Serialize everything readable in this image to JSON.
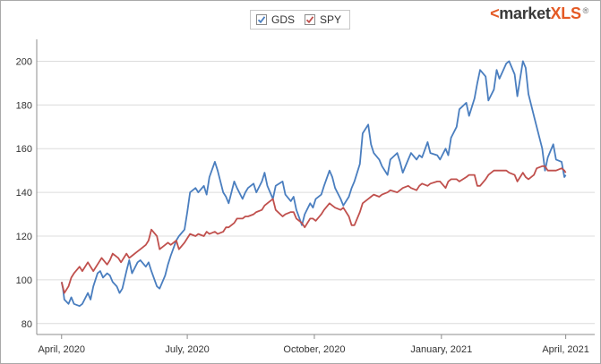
{
  "legend": {
    "items": [
      {
        "label": "GDS",
        "color": "#4a7ebf",
        "checked": true
      },
      {
        "label": "SPY",
        "color": "#c0504d",
        "checked": true
      }
    ]
  },
  "logo": {
    "prefix": "<",
    "brand": "market",
    "suffix": "XLS",
    "reg": "®"
  },
  "chart_data": {
    "type": "line",
    "title": "",
    "xlabel": "",
    "ylabel": "",
    "ylim": [
      75,
      210
    ],
    "y_ticks": [
      80,
      100,
      120,
      140,
      160,
      180,
      200
    ],
    "x_ticks": [
      {
        "date": "2020-04-01",
        "label": "April, 2020"
      },
      {
        "date": "2020-07-01",
        "label": "July, 2020"
      },
      {
        "date": "2020-10-01",
        "label": "October, 2020"
      },
      {
        "date": "2021-01-01",
        "label": "January, 2021"
      },
      {
        "date": "2021-04-01",
        "label": "April, 2021"
      }
    ],
    "xlim": [
      "2020-03-14",
      "2021-04-22"
    ],
    "grid": "horizontal",
    "legend_position": "top",
    "series": [
      {
        "name": "GDS",
        "color": "#4a7ebf",
        "points": [
          [
            "2020-04-01",
            99
          ],
          [
            "2020-04-02",
            96
          ],
          [
            "2020-04-03",
            91
          ],
          [
            "2020-04-06",
            89
          ],
          [
            "2020-04-08",
            92
          ],
          [
            "2020-04-10",
            89
          ],
          [
            "2020-04-14",
            88
          ],
          [
            "2020-04-16",
            89
          ],
          [
            "2020-04-20",
            94
          ],
          [
            "2020-04-22",
            91
          ],
          [
            "2020-04-24",
            97
          ],
          [
            "2020-04-27",
            103
          ],
          [
            "2020-04-29",
            104
          ],
          [
            "2020-05-01",
            101
          ],
          [
            "2020-05-04",
            103
          ],
          [
            "2020-05-06",
            102
          ],
          [
            "2020-05-08",
            99
          ],
          [
            "2020-05-11",
            97
          ],
          [
            "2020-05-13",
            94
          ],
          [
            "2020-05-15",
            96
          ],
          [
            "2020-05-18",
            104
          ],
          [
            "2020-05-20",
            109
          ],
          [
            "2020-05-22",
            103
          ],
          [
            "2020-05-26",
            108
          ],
          [
            "2020-05-28",
            109
          ],
          [
            "2020-06-01",
            106
          ],
          [
            "2020-06-03",
            108
          ],
          [
            "2020-06-05",
            104
          ],
          [
            "2020-06-09",
            97
          ],
          [
            "2020-06-11",
            96
          ],
          [
            "2020-06-15",
            102
          ],
          [
            "2020-06-17",
            107
          ],
          [
            "2020-06-19",
            111
          ],
          [
            "2020-06-23",
            118
          ],
          [
            "2020-06-25",
            120
          ],
          [
            "2020-06-29",
            123
          ],
          [
            "2020-07-01",
            131
          ],
          [
            "2020-07-03",
            140
          ],
          [
            "2020-07-07",
            142
          ],
          [
            "2020-07-09",
            140
          ],
          [
            "2020-07-13",
            143
          ],
          [
            "2020-07-15",
            139
          ],
          [
            "2020-07-17",
            147
          ],
          [
            "2020-07-21",
            154
          ],
          [
            "2020-07-23",
            150
          ],
          [
            "2020-07-27",
            140
          ],
          [
            "2020-07-29",
            138
          ],
          [
            "2020-07-31",
            135
          ],
          [
            "2020-08-04",
            145
          ],
          [
            "2020-08-06",
            142
          ],
          [
            "2020-08-10",
            137
          ],
          [
            "2020-08-12",
            140
          ],
          [
            "2020-08-14",
            142
          ],
          [
            "2020-08-18",
            144
          ],
          [
            "2020-08-20",
            140
          ],
          [
            "2020-08-24",
            145
          ],
          [
            "2020-08-26",
            149
          ],
          [
            "2020-08-28",
            143
          ],
          [
            "2020-09-01",
            137
          ],
          [
            "2020-09-03",
            143
          ],
          [
            "2020-09-08",
            145
          ],
          [
            "2020-09-10",
            139
          ],
          [
            "2020-09-14",
            136
          ],
          [
            "2020-09-16",
            138
          ],
          [
            "2020-09-18",
            132
          ],
          [
            "2020-09-22",
            125
          ],
          [
            "2020-09-24",
            130
          ],
          [
            "2020-09-28",
            135
          ],
          [
            "2020-09-30",
            133
          ],
          [
            "2020-10-02",
            137
          ],
          [
            "2020-10-06",
            139
          ],
          [
            "2020-10-08",
            143
          ],
          [
            "2020-10-12",
            150
          ],
          [
            "2020-10-14",
            147
          ],
          [
            "2020-10-16",
            142
          ],
          [
            "2020-10-20",
            137
          ],
          [
            "2020-10-22",
            134
          ],
          [
            "2020-10-26",
            138
          ],
          [
            "2020-10-28",
            142
          ],
          [
            "2020-10-30",
            145
          ],
          [
            "2020-11-03",
            153
          ],
          [
            "2020-11-05",
            167
          ],
          [
            "2020-11-09",
            171
          ],
          [
            "2020-11-11",
            162
          ],
          [
            "2020-11-13",
            158
          ],
          [
            "2020-11-17",
            155
          ],
          [
            "2020-11-19",
            152
          ],
          [
            "2020-11-23",
            148
          ],
          [
            "2020-11-25",
            155
          ],
          [
            "2020-11-30",
            158
          ],
          [
            "2020-12-02",
            154
          ],
          [
            "2020-12-04",
            149
          ],
          [
            "2020-12-08",
            155
          ],
          [
            "2020-12-10",
            158
          ],
          [
            "2020-12-14",
            155
          ],
          [
            "2020-12-16",
            157
          ],
          [
            "2020-12-18",
            156
          ],
          [
            "2020-12-22",
            163
          ],
          [
            "2020-12-24",
            158
          ],
          [
            "2020-12-29",
            157
          ],
          [
            "2020-12-31",
            155
          ],
          [
            "2021-01-04",
            160
          ],
          [
            "2021-01-06",
            157
          ],
          [
            "2021-01-08",
            165
          ],
          [
            "2021-01-12",
            170
          ],
          [
            "2021-01-14",
            178
          ],
          [
            "2021-01-19",
            181
          ],
          [
            "2021-01-21",
            175
          ],
          [
            "2021-01-25",
            183
          ],
          [
            "2021-01-27",
            190
          ],
          [
            "2021-01-29",
            196
          ],
          [
            "2021-02-02",
            193
          ],
          [
            "2021-02-04",
            182
          ],
          [
            "2021-02-08",
            187
          ],
          [
            "2021-02-10",
            196
          ],
          [
            "2021-02-12",
            192
          ],
          [
            "2021-02-17",
            199
          ],
          [
            "2021-02-19",
            200
          ],
          [
            "2021-02-23",
            194
          ],
          [
            "2021-02-25",
            184
          ],
          [
            "2021-03-01",
            200
          ],
          [
            "2021-03-03",
            197
          ],
          [
            "2021-03-05",
            185
          ],
          [
            "2021-03-09",
            175
          ],
          [
            "2021-03-11",
            170
          ],
          [
            "2021-03-15",
            160
          ],
          [
            "2021-03-17",
            150
          ],
          [
            "2021-03-19",
            156
          ],
          [
            "2021-03-23",
            162
          ],
          [
            "2021-03-25",
            155
          ],
          [
            "2021-03-29",
            154
          ],
          [
            "2021-03-31",
            147
          ],
          [
            "2021-04-01",
            148
          ]
        ]
      },
      {
        "name": "SPY",
        "color": "#c0504d",
        "points": [
          [
            "2020-04-01",
            99
          ],
          [
            "2020-04-03",
            94
          ],
          [
            "2020-04-06",
            97
          ],
          [
            "2020-04-08",
            101
          ],
          [
            "2020-04-10",
            103
          ],
          [
            "2020-04-14",
            106
          ],
          [
            "2020-04-16",
            104
          ],
          [
            "2020-04-20",
            108
          ],
          [
            "2020-04-22",
            106
          ],
          [
            "2020-04-24",
            104
          ],
          [
            "2020-04-28",
            108
          ],
          [
            "2020-04-30",
            110
          ],
          [
            "2020-05-04",
            107
          ],
          [
            "2020-05-06",
            109
          ],
          [
            "2020-05-08",
            112
          ],
          [
            "2020-05-12",
            110
          ],
          [
            "2020-05-14",
            108
          ],
          [
            "2020-05-18",
            112
          ],
          [
            "2020-05-20",
            110
          ],
          [
            "2020-05-22",
            111
          ],
          [
            "2020-05-26",
            113
          ],
          [
            "2020-05-28",
            114
          ],
          [
            "2020-06-01",
            116
          ],
          [
            "2020-06-03",
            118
          ],
          [
            "2020-06-05",
            123
          ],
          [
            "2020-06-09",
            120
          ],
          [
            "2020-06-11",
            114
          ],
          [
            "2020-06-15",
            116
          ],
          [
            "2020-06-17",
            117
          ],
          [
            "2020-06-19",
            116
          ],
          [
            "2020-06-23",
            118
          ],
          [
            "2020-06-25",
            114
          ],
          [
            "2020-06-29",
            117
          ],
          [
            "2020-07-01",
            119
          ],
          [
            "2020-07-03",
            121
          ],
          [
            "2020-07-07",
            120
          ],
          [
            "2020-07-09",
            121
          ],
          [
            "2020-07-13",
            120
          ],
          [
            "2020-07-15",
            122
          ],
          [
            "2020-07-17",
            121
          ],
          [
            "2020-07-21",
            122
          ],
          [
            "2020-07-23",
            121
          ],
          [
            "2020-07-27",
            122
          ],
          [
            "2020-07-29",
            124
          ],
          [
            "2020-07-31",
            124
          ],
          [
            "2020-08-04",
            126
          ],
          [
            "2020-08-06",
            128
          ],
          [
            "2020-08-10",
            128
          ],
          [
            "2020-08-12",
            129
          ],
          [
            "2020-08-14",
            129
          ],
          [
            "2020-08-18",
            130
          ],
          [
            "2020-08-20",
            131
          ],
          [
            "2020-08-24",
            132
          ],
          [
            "2020-08-26",
            134
          ],
          [
            "2020-08-28",
            135
          ],
          [
            "2020-09-01",
            137
          ],
          [
            "2020-09-03",
            132
          ],
          [
            "2020-09-08",
            129
          ],
          [
            "2020-09-10",
            130
          ],
          [
            "2020-09-14",
            131
          ],
          [
            "2020-09-16",
            131
          ],
          [
            "2020-09-18",
            128
          ],
          [
            "2020-09-22",
            126
          ],
          [
            "2020-09-24",
            124
          ],
          [
            "2020-09-28",
            128
          ],
          [
            "2020-09-30",
            128
          ],
          [
            "2020-10-02",
            127
          ],
          [
            "2020-10-06",
            130
          ],
          [
            "2020-10-08",
            132
          ],
          [
            "2020-10-12",
            135
          ],
          [
            "2020-10-14",
            134
          ],
          [
            "2020-10-16",
            133
          ],
          [
            "2020-10-20",
            132
          ],
          [
            "2020-10-22",
            133
          ],
          [
            "2020-10-26",
            129
          ],
          [
            "2020-10-28",
            125
          ],
          [
            "2020-10-30",
            125
          ],
          [
            "2020-11-03",
            131
          ],
          [
            "2020-11-05",
            135
          ],
          [
            "2020-11-09",
            137
          ],
          [
            "2020-11-11",
            138
          ],
          [
            "2020-11-13",
            139
          ],
          [
            "2020-11-17",
            138
          ],
          [
            "2020-11-19",
            139
          ],
          [
            "2020-11-23",
            140
          ],
          [
            "2020-11-25",
            141
          ],
          [
            "2020-11-30",
            140
          ],
          [
            "2020-12-02",
            141
          ],
          [
            "2020-12-04",
            142
          ],
          [
            "2020-12-08",
            143
          ],
          [
            "2020-12-10",
            142
          ],
          [
            "2020-12-14",
            141
          ],
          [
            "2020-12-16",
            143
          ],
          [
            "2020-12-18",
            144
          ],
          [
            "2020-12-22",
            143
          ],
          [
            "2020-12-24",
            144
          ],
          [
            "2020-12-29",
            145
          ],
          [
            "2020-12-31",
            145
          ],
          [
            "2021-01-04",
            142
          ],
          [
            "2021-01-06",
            145
          ],
          [
            "2021-01-08",
            146
          ],
          [
            "2021-01-12",
            146
          ],
          [
            "2021-01-14",
            145
          ],
          [
            "2021-01-19",
            147
          ],
          [
            "2021-01-21",
            148
          ],
          [
            "2021-01-25",
            148
          ],
          [
            "2021-01-27",
            143
          ],
          [
            "2021-01-29",
            143
          ],
          [
            "2021-02-02",
            146
          ],
          [
            "2021-02-04",
            148
          ],
          [
            "2021-02-08",
            150
          ],
          [
            "2021-02-10",
            150
          ],
          [
            "2021-02-12",
            150
          ],
          [
            "2021-02-17",
            150
          ],
          [
            "2021-02-19",
            149
          ],
          [
            "2021-02-23",
            148
          ],
          [
            "2021-02-25",
            145
          ],
          [
            "2021-03-01",
            149
          ],
          [
            "2021-03-03",
            147
          ],
          [
            "2021-03-05",
            146
          ],
          [
            "2021-03-09",
            148
          ],
          [
            "2021-03-11",
            151
          ],
          [
            "2021-03-15",
            152
          ],
          [
            "2021-03-17",
            152
          ],
          [
            "2021-03-19",
            150
          ],
          [
            "2021-03-23",
            150
          ],
          [
            "2021-03-25",
            150
          ],
          [
            "2021-03-29",
            151
          ],
          [
            "2021-03-31",
            150
          ],
          [
            "2021-04-01",
            149
          ]
        ]
      }
    ]
  }
}
